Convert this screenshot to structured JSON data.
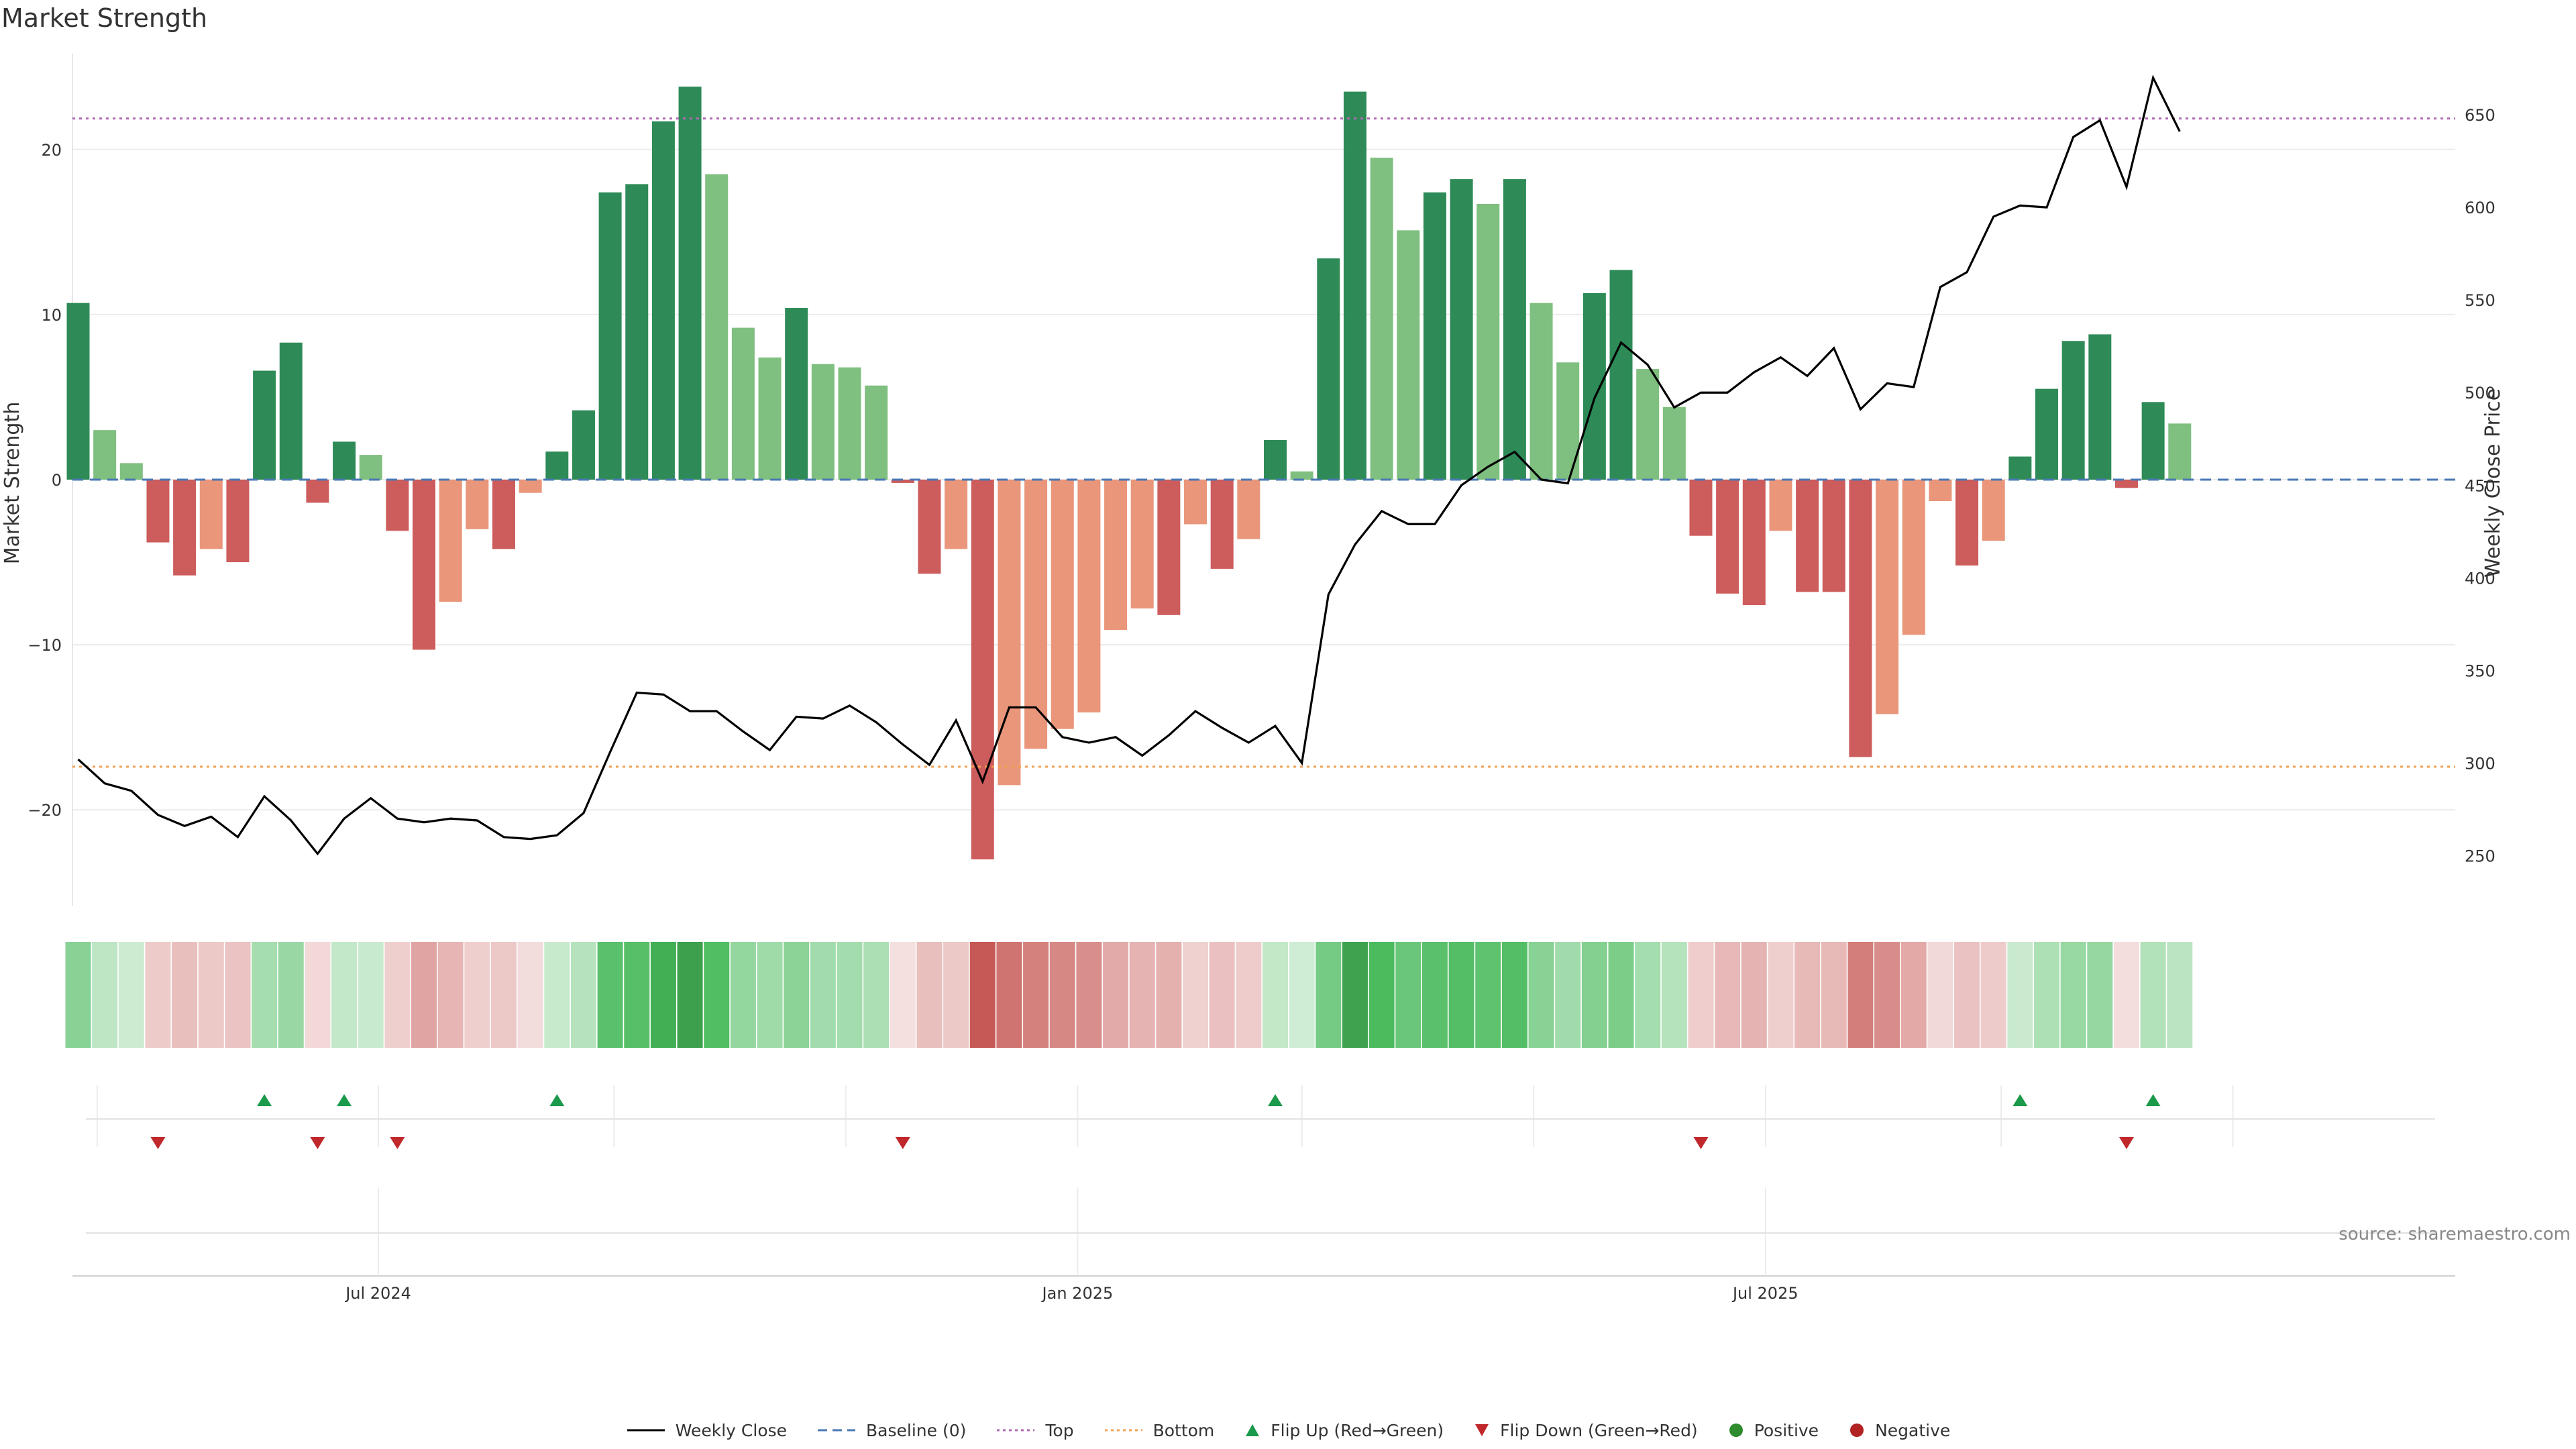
{
  "title": "Market Strength",
  "source": "source: sharemaestro.com",
  "colors": {
    "pos_strong": "#2e8b57",
    "pos_weak": "#7fbf7f",
    "neg_strong": "#cd5c5c",
    "neg_weak": "#e9967a",
    "price": "#000000",
    "baseline": "#4a78b5",
    "top": "#b06ab3",
    "bottom": "#f0a050",
    "flip_up": "#1a9a4a",
    "flip_down": "#c0282b",
    "positive": "#2e8b2e",
    "negative": "#b22222"
  },
  "legend": [
    {
      "label": "Weekly Close",
      "kind": "line",
      "color": "#000000"
    },
    {
      "label": "Baseline (0)",
      "kind": "dash",
      "color": "#4a78b5"
    },
    {
      "label": "Top",
      "kind": "dot",
      "color": "#b06ab3"
    },
    {
      "label": "Bottom",
      "kind": "dot",
      "color": "#f0a050"
    },
    {
      "label": "Flip Up (Red→Green)",
      "kind": "up",
      "color": "#1a9a4a"
    },
    {
      "label": "Flip Down (Green→Red)",
      "kind": "down",
      "color": "#c0282b"
    },
    {
      "label": "Positive",
      "kind": "circle",
      "color": "#2e8b2e"
    },
    {
      "label": "Negative",
      "kind": "circle",
      "color": "#b22222"
    }
  ],
  "chart_data": {
    "type": "bar",
    "title": "Market Strength",
    "ylabel_left": "Market Strength",
    "ylabel_right": "Weekly Close Price",
    "ylim_left": [
      -25.8,
      25.8
    ],
    "yticks_left": [
      -20,
      -10,
      0,
      10,
      20
    ],
    "ylim_right": [
      223,
      683
    ],
    "yticks_right": [
      250,
      300,
      350,
      400,
      450,
      500,
      550,
      600,
      650
    ],
    "xlim_days": [
      -35.5,
      591.5
    ],
    "x_ticks": [
      {
        "day": 45,
        "label": "Jul 2024"
      },
      {
        "day": 229,
        "label": "Jan 2025"
      },
      {
        "day": 410,
        "label": "Jul 2025"
      }
    ],
    "x_gridlines_days": [
      -29,
      45,
      107,
      168,
      229,
      288,
      349,
      410,
      472,
      533
    ],
    "top_line_price": 648,
    "bottom_line_price": 298,
    "start_day": -34,
    "step_days": 7,
    "strength": [
      10.7,
      3.0,
      1.0,
      -3.8,
      -5.8,
      -4.2,
      -5.0,
      6.6,
      8.3,
      -1.4,
      2.3,
      1.5,
      -3.1,
      -10.3,
      -7.4,
      -3.0,
      -4.2,
      -0.8,
      1.7,
      4.2,
      17.4,
      17.9,
      21.7,
      23.8,
      18.5,
      9.2,
      7.4,
      10.4,
      7.0,
      6.8,
      5.7,
      -0.2,
      -5.7,
      -4.2,
      -23.0,
      -18.5,
      -16.3,
      -15.1,
      -14.1,
      -9.1,
      -7.8,
      -8.2,
      -2.7,
      -5.4,
      -3.6,
      2.4,
      0.5,
      13.4,
      23.5,
      19.5,
      15.1,
      17.4,
      18.2,
      16.7,
      18.2,
      10.7,
      7.1,
      11.3,
      12.7,
      6.7,
      4.4,
      -3.4,
      -6.9,
      -7.6,
      -3.1,
      -6.8,
      -6.8,
      -16.8,
      -14.2,
      -9.4,
      -1.3,
      -5.2,
      -3.7,
      1.4,
      5.5,
      8.4,
      8.8,
      -0.5,
      4.7,
      3.4
    ],
    "bar_tone": [
      "strong",
      "weak",
      "weak",
      "strong",
      "strong",
      "weak",
      "strong",
      "strong",
      "strong",
      "strong",
      "strong",
      "weak",
      "strong",
      "strong",
      "weak",
      "weak",
      "strong",
      "weak",
      "strong",
      "strong",
      "strong",
      "strong",
      "strong",
      "strong",
      "weak",
      "weak",
      "weak",
      "strong",
      "weak",
      "weak",
      "weak",
      "strong",
      "strong",
      "weak",
      "strong",
      "weak",
      "weak",
      "weak",
      "weak",
      "weak",
      "weak",
      "strong",
      "weak",
      "strong",
      "weak",
      "strong",
      "weak",
      "strong",
      "strong",
      "weak",
      "weak",
      "strong",
      "strong",
      "weak",
      "strong",
      "weak",
      "weak",
      "strong",
      "strong",
      "weak",
      "weak",
      "strong",
      "strong",
      "strong",
      "weak",
      "strong",
      "strong",
      "strong",
      "weak",
      "weak",
      "weak",
      "strong",
      "weak",
      "strong",
      "strong",
      "strong",
      "strong",
      "strong",
      "strong",
      "weak"
    ],
    "weekly_close": [
      [
        -34,
        302
      ],
      [
        -27,
        289
      ],
      [
        -20,
        285
      ],
      [
        -13,
        272
      ],
      [
        -6,
        266
      ],
      [
        1,
        271
      ],
      [
        8,
        260
      ],
      [
        15,
        282
      ],
      [
        22,
        269
      ],
      [
        29,
        251
      ],
      [
        36,
        270
      ],
      [
        43,
        281
      ],
      [
        50,
        270
      ],
      [
        57,
        268
      ],
      [
        64,
        270
      ],
      [
        71,
        269
      ],
      [
        78,
        260
      ],
      [
        85,
        259
      ],
      [
        92,
        261
      ],
      [
        99,
        273
      ],
      [
        106,
        306
      ],
      [
        113,
        338
      ],
      [
        120,
        337
      ],
      [
        127,
        328
      ],
      [
        134,
        328
      ],
      [
        141,
        317
      ],
      [
        148,
        307
      ],
      [
        155,
        325
      ],
      [
        162,
        324
      ],
      [
        169,
        331
      ],
      [
        176,
        322
      ],
      [
        183,
        310
      ],
      [
        190,
        299
      ],
      [
        197,
        323
      ],
      [
        204,
        290
      ],
      [
        211,
        330
      ],
      [
        218,
        330
      ],
      [
        225,
        314
      ],
      [
        232,
        311
      ],
      [
        239,
        314
      ],
      [
        246,
        304
      ],
      [
        253,
        315
      ],
      [
        260,
        328
      ],
      [
        267,
        319
      ],
      [
        274,
        311
      ],
      [
        281,
        320
      ],
      [
        288,
        300
      ],
      [
        295,
        391
      ],
      [
        302,
        418
      ],
      [
        309,
        436
      ],
      [
        316,
        429
      ],
      [
        323,
        429
      ],
      [
        330,
        450
      ],
      [
        337,
        460
      ],
      [
        344,
        468
      ],
      [
        351,
        453
      ],
      [
        358,
        451
      ],
      [
        365,
        497
      ],
      [
        372,
        527
      ],
      [
        379,
        515
      ],
      [
        386,
        492
      ],
      [
        393,
        500
      ],
      [
        400,
        500
      ],
      [
        407,
        511
      ],
      [
        414,
        519
      ],
      [
        421,
        509
      ],
      [
        428,
        524
      ],
      [
        435,
        491
      ],
      [
        442,
        505
      ],
      [
        449,
        503
      ],
      [
        456,
        557
      ],
      [
        463,
        565
      ],
      [
        470,
        595
      ],
      [
        477,
        601
      ],
      [
        484,
        600
      ],
      [
        491,
        638
      ],
      [
        498,
        647
      ],
      [
        505,
        611
      ],
      [
        512,
        670
      ],
      [
        519,
        641
      ]
    ],
    "heatmap_strip": "same values as strength, shaded by magnitude",
    "flip_up_days": [
      15,
      36,
      92,
      281,
      477,
      512
    ],
    "flip_down_days": [
      -13,
      29,
      50,
      183,
      393,
      505
    ]
  }
}
